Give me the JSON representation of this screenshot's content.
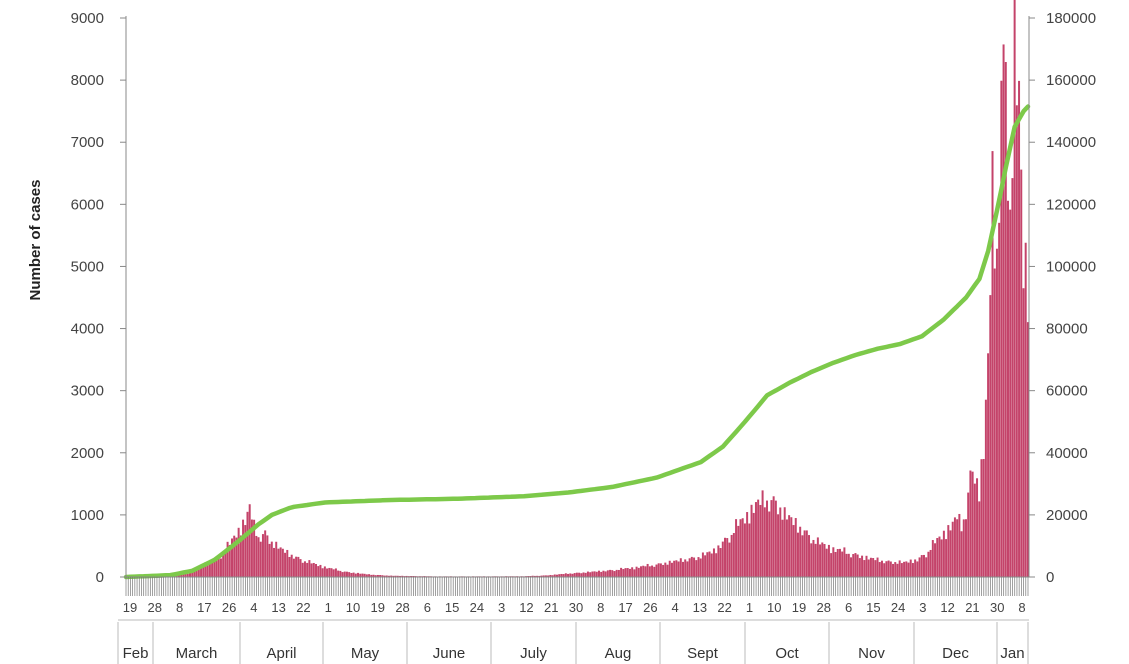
{
  "chart_data": {
    "type": "bar",
    "title": "",
    "ylabel": "Number of cases",
    "y2label": "",
    "ylim": [
      0,
      9000
    ],
    "y2lim": [
      0,
      180000
    ],
    "y_ticks": [
      "0",
      "1000",
      "2000",
      "3000",
      "4000",
      "5000",
      "6000",
      "7000",
      "8000",
      "9000"
    ],
    "y2_ticks": [
      "0",
      "20000",
      "40000",
      "60000",
      "80000",
      "100000",
      "120000",
      "140000",
      "160000",
      "180000"
    ],
    "grid": false,
    "colors": {
      "bars": "#c4436a",
      "line": "#7dc94a"
    },
    "day_labels": [
      "19",
      "28",
      "8",
      "17",
      "26",
      "4",
      "13",
      "22",
      "1",
      "10",
      "19",
      "28",
      "6",
      "15",
      "24",
      "3",
      "12",
      "21",
      "30",
      "8",
      "17",
      "26",
      "4",
      "13",
      "22",
      "1",
      "10",
      "19",
      "28",
      "6",
      "15",
      "24",
      "3",
      "12",
      "21",
      "30",
      "8"
    ],
    "months": [
      "Feb",
      "March",
      "April",
      "May",
      "June",
      "July",
      "Aug",
      "Sept",
      "Oct",
      "Nov",
      "Dec",
      "Jan"
    ],
    "series": [
      {
        "type": "bar",
        "axis": "left",
        "points": [
          [
            0,
            0
          ],
          [
            10,
            0
          ],
          [
            20,
            5
          ],
          [
            28,
            60
          ],
          [
            35,
            200
          ],
          [
            42,
            320
          ],
          [
            47,
            520
          ],
          [
            50,
            700
          ],
          [
            54,
            900
          ],
          [
            56,
            1100
          ],
          [
            58,
            800
          ],
          [
            60,
            650
          ],
          [
            63,
            700
          ],
          [
            66,
            560
          ],
          [
            70,
            450
          ],
          [
            75,
            350
          ],
          [
            80,
            270
          ],
          [
            86,
            200
          ],
          [
            92,
            140
          ],
          [
            100,
            80
          ],
          [
            110,
            40
          ],
          [
            120,
            20
          ],
          [
            140,
            10
          ],
          [
            160,
            10
          ],
          [
            180,
            12
          ],
          [
            190,
            25
          ],
          [
            200,
            55
          ],
          [
            210,
            80
          ],
          [
            220,
            110
          ],
          [
            230,
            150
          ],
          [
            240,
            200
          ],
          [
            250,
            260
          ],
          [
            260,
            330
          ],
          [
            266,
            420
          ],
          [
            270,
            550
          ],
          [
            275,
            750
          ],
          [
            280,
            950
          ],
          [
            285,
            1150
          ],
          [
            290,
            1250
          ],
          [
            294,
            1200
          ],
          [
            298,
            1000
          ],
          [
            303,
            850
          ],
          [
            308,
            700
          ],
          [
            313,
            550
          ],
          [
            320,
            450
          ],
          [
            328,
            380
          ],
          [
            336,
            300
          ],
          [
            344,
            250
          ],
          [
            352,
            230
          ],
          [
            358,
            280
          ],
          [
            362,
            380
          ],
          [
            366,
            550
          ],
          [
            370,
            700
          ],
          [
            374,
            850
          ],
          [
            376,
            950
          ],
          [
            378,
            800
          ],
          [
            380,
            1100
          ],
          [
            382,
            1600
          ],
          [
            384,
            1700
          ],
          [
            386,
            1400
          ],
          [
            388,
            2000
          ],
          [
            390,
            3400
          ],
          [
            392,
            6100
          ],
          [
            394,
            5200
          ],
          [
            396,
            7800
          ],
          [
            398,
            8200
          ],
          [
            400,
            6000
          ],
          [
            402,
            8100
          ],
          [
            404,
            7500
          ],
          [
            406,
            5000
          ],
          [
            408,
            4900
          ]
        ]
      },
      {
        "type": "line",
        "axis": "right",
        "points": [
          [
            0,
            0
          ],
          [
            20,
            600
          ],
          [
            30,
            2000
          ],
          [
            40,
            5500
          ],
          [
            50,
            11000
          ],
          [
            60,
            17000
          ],
          [
            66,
            20000
          ],
          [
            75,
            22500
          ],
          [
            90,
            24000
          ],
          [
            120,
            24800
          ],
          [
            150,
            25200
          ],
          [
            180,
            26000
          ],
          [
            200,
            27200
          ],
          [
            220,
            29000
          ],
          [
            240,
            32000
          ],
          [
            260,
            37000
          ],
          [
            270,
            42000
          ],
          [
            280,
            50000
          ],
          [
            290,
            58500
          ],
          [
            300,
            62500
          ],
          [
            310,
            66000
          ],
          [
            320,
            69000
          ],
          [
            330,
            71500
          ],
          [
            340,
            73500
          ],
          [
            350,
            75000
          ],
          [
            360,
            77500
          ],
          [
            370,
            83000
          ],
          [
            380,
            90000
          ],
          [
            386,
            96000
          ],
          [
            390,
            105000
          ],
          [
            394,
            118000
          ],
          [
            398,
            132000
          ],
          [
            402,
            145000
          ],
          [
            406,
            150000
          ],
          [
            408,
            151500
          ]
        ]
      }
    ]
  }
}
